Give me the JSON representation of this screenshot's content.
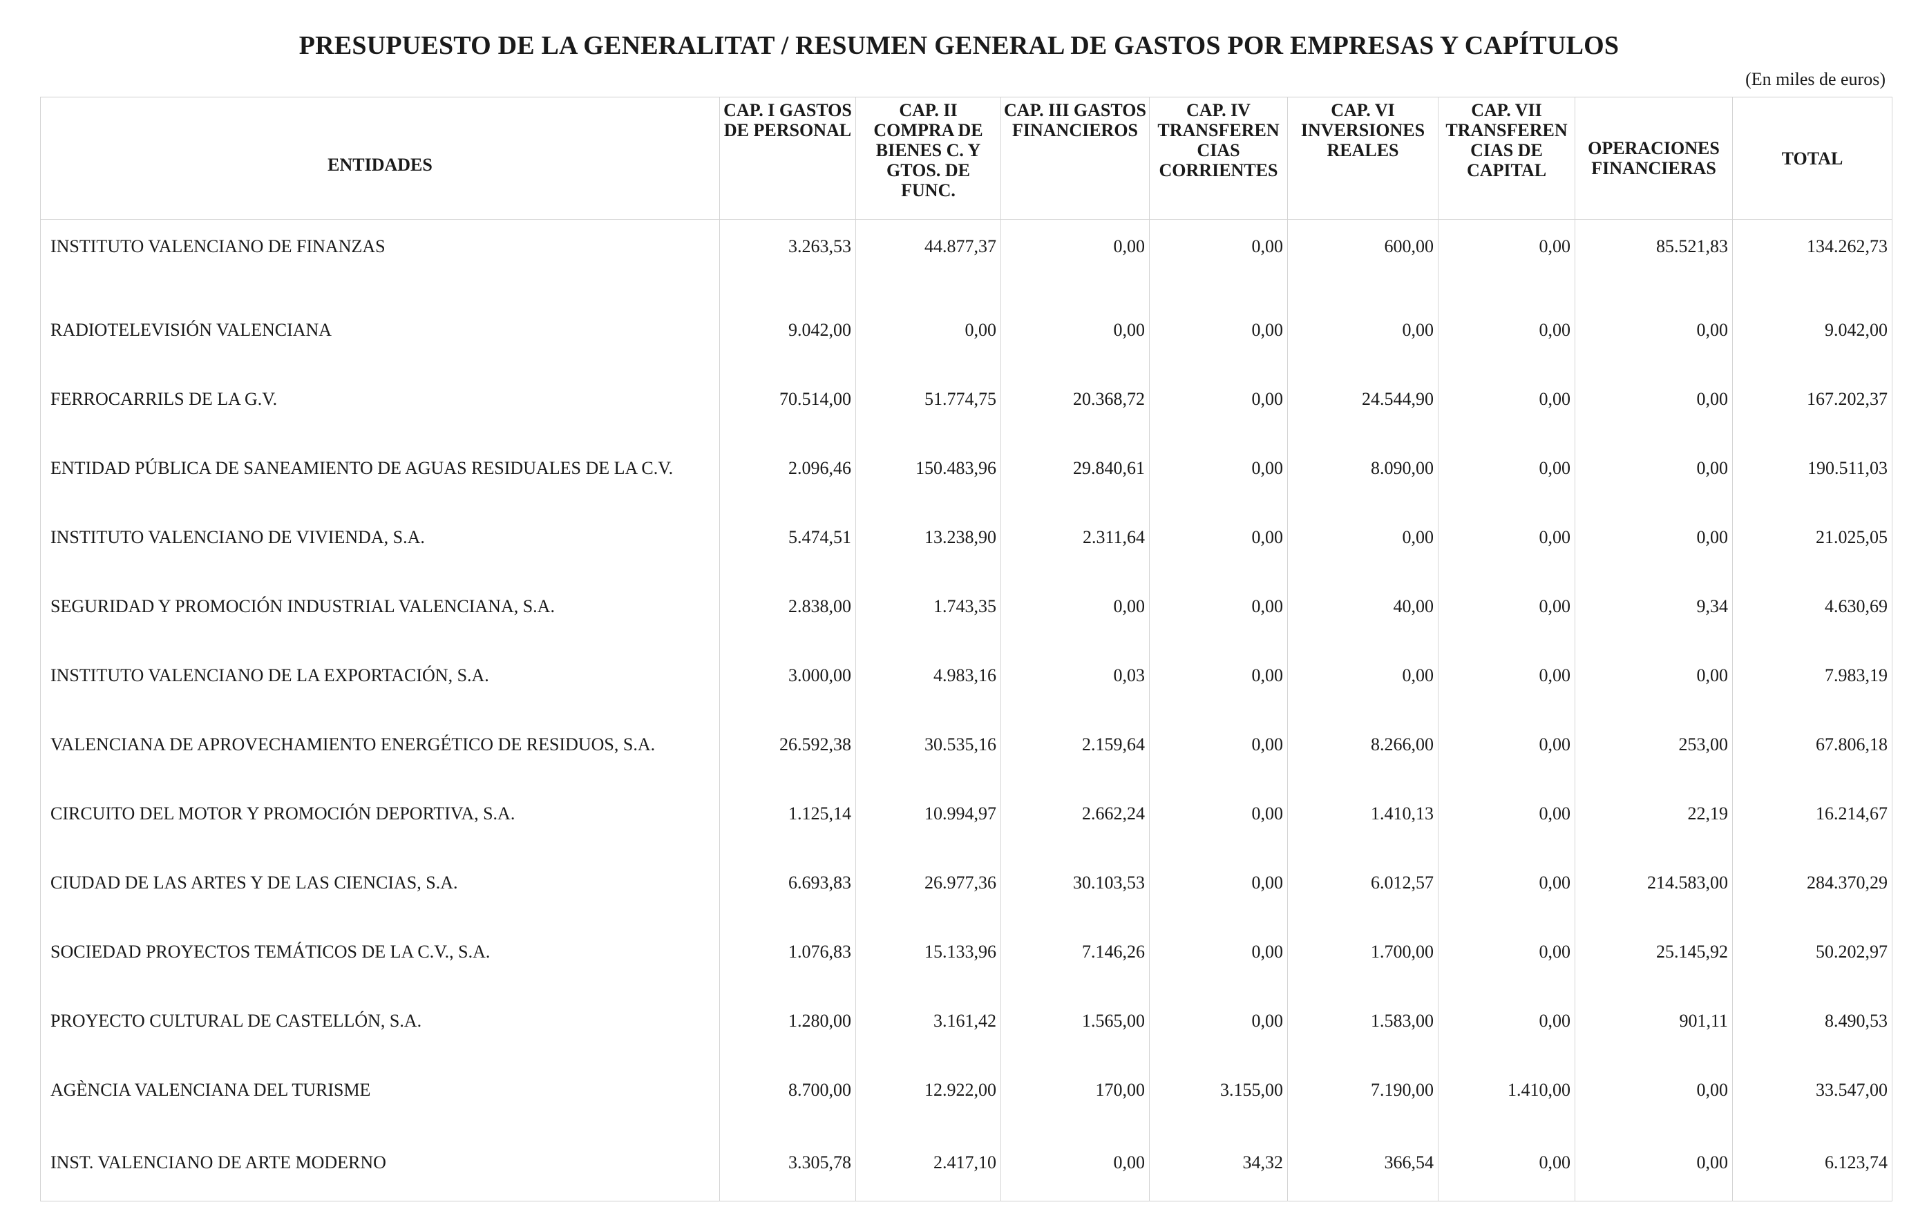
{
  "title": "PRESUPUESTO DE LA GENERALITAT / RESUMEN GENERAL DE GASTOS POR EMPRESAS Y CAPÍTULOS",
  "units": "(En miles de euros)",
  "columns": [
    "ENTIDADES",
    "CAP. I GASTOS DE PERSONAL",
    "CAP. II COMPRA DE BIENES C. Y GTOS. DE FUNC.",
    "CAP. III GASTOS FINANCIEROS",
    "CAP. IV TRANSFEREN CIAS CORRIENTES",
    "CAP. VI INVERSIONES REALES",
    "CAP. VII TRANSFEREN CIAS DE CAPITAL",
    "OPERACIONES FINANCIERAS",
    "TOTAL"
  ],
  "rows": [
    {
      "entity": "INSTITUTO VALENCIANO DE FINANZAS",
      "values": [
        "3.263,53",
        "44.877,37",
        "0,00",
        "0,00",
        "600,00",
        "0,00",
        "85.521,83",
        "134.262,73"
      ]
    },
    {
      "entity": "RADIOTELEVISIÓN VALENCIANA",
      "values": [
        "9.042,00",
        "0,00",
        "0,00",
        "0,00",
        "0,00",
        "0,00",
        "0,00",
        "9.042,00"
      ]
    },
    {
      "entity": "FERROCARRILS DE LA G.V.",
      "values": [
        "70.514,00",
        "51.774,75",
        "20.368,72",
        "0,00",
        "24.544,90",
        "0,00",
        "0,00",
        "167.202,37"
      ]
    },
    {
      "entity": "ENTIDAD PÚBLICA DE SANEAMIENTO DE AGUAS RESIDUALES DE LA C.V.",
      "values": [
        "2.096,46",
        "150.483,96",
        "29.840,61",
        "0,00",
        "8.090,00",
        "0,00",
        "0,00",
        "190.511,03"
      ]
    },
    {
      "entity": "INSTITUTO VALENCIANO DE VIVIENDA, S.A.",
      "values": [
        "5.474,51",
        "13.238,90",
        "2.311,64",
        "0,00",
        "0,00",
        "0,00",
        "0,00",
        "21.025,05"
      ]
    },
    {
      "entity": "SEGURIDAD Y PROMOCIÓN INDUSTRIAL VALENCIANA, S.A.",
      "values": [
        "2.838,00",
        "1.743,35",
        "0,00",
        "0,00",
        "40,00",
        "0,00",
        "9,34",
        "4.630,69"
      ]
    },
    {
      "entity": "INSTITUTO VALENCIANO DE LA EXPORTACIÓN, S.A.",
      "values": [
        "3.000,00",
        "4.983,16",
        "0,03",
        "0,00",
        "0,00",
        "0,00",
        "0,00",
        "7.983,19"
      ]
    },
    {
      "entity": "VALENCIANA DE APROVECHAMIENTO ENERGÉTICO DE RESIDUOS, S.A.",
      "values": [
        "26.592,38",
        "30.535,16",
        "2.159,64",
        "0,00",
        "8.266,00",
        "0,00",
        "253,00",
        "67.806,18"
      ]
    },
    {
      "entity": "CIRCUITO DEL MOTOR Y PROMOCIÓN DEPORTIVA, S.A.",
      "values": [
        "1.125,14",
        "10.994,97",
        "2.662,24",
        "0,00",
        "1.410,13",
        "0,00",
        "22,19",
        "16.214,67"
      ]
    },
    {
      "entity": "CIUDAD DE LAS ARTES Y DE LAS CIENCIAS, S.A.",
      "values": [
        "6.693,83",
        "26.977,36",
        "30.103,53",
        "0,00",
        "6.012,57",
        "0,00",
        "214.583,00",
        "284.370,29"
      ]
    },
    {
      "entity": "SOCIEDAD PROYECTOS TEMÁTICOS DE LA C.V., S.A.",
      "values": [
        "1.076,83",
        "15.133,96",
        "7.146,26",
        "0,00",
        "1.700,00",
        "0,00",
        "25.145,92",
        "50.202,97"
      ]
    },
    {
      "entity": "PROYECTO CULTURAL DE CASTELLÓN, S.A.",
      "values": [
        "1.280,00",
        "3.161,42",
        "1.565,00",
        "0,00",
        "1.583,00",
        "0,00",
        "901,11",
        "8.490,53"
      ]
    },
    {
      "entity": "AGÈNCIA VALENCIANA DEL TURISME",
      "values": [
        "8.700,00",
        "12.922,00",
        "170,00",
        "3.155,00",
        "7.190,00",
        "1.410,00",
        "0,00",
        "33.547,00"
      ]
    },
    {
      "entity": "INST. VALENCIANO DE ARTE MODERNO",
      "values": [
        "3.305,78",
        "2.417,10",
        "0,00",
        "34,32",
        "366,54",
        "0,00",
        "0,00",
        "6.123,74"
      ]
    }
  ]
}
